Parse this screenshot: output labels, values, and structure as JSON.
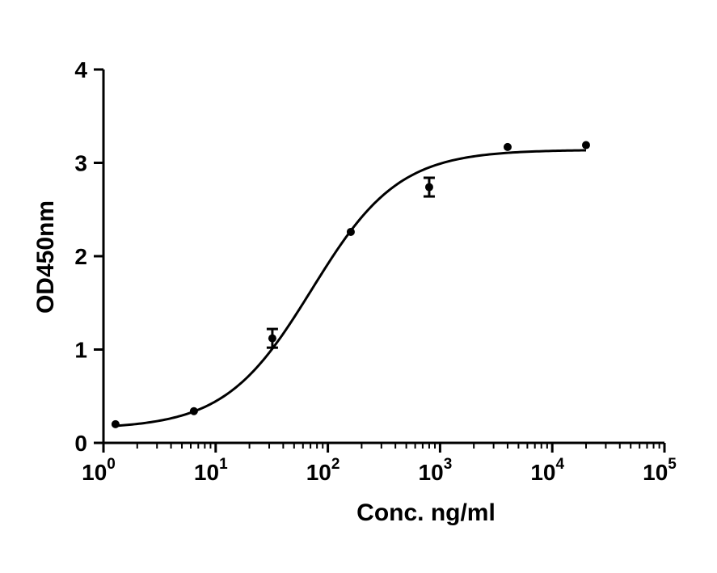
{
  "chart_data": {
    "type": "scatter",
    "title": "",
    "xlabel": "Conc. ng/ml",
    "ylabel": "OD450nm",
    "x_scale": "log10",
    "xlim": [
      1,
      100000
    ],
    "ylim": [
      0,
      4
    ],
    "x_ticks": [
      {
        "base": "10",
        "exp": "0",
        "value": 1
      },
      {
        "base": "10",
        "exp": "1",
        "value": 10
      },
      {
        "base": "10",
        "exp": "2",
        "value": 100
      },
      {
        "base": "10",
        "exp": "3",
        "value": 1000
      },
      {
        "base": "10",
        "exp": "4",
        "value": 10000
      },
      {
        "base": "10",
        "exp": "5",
        "value": 100000
      }
    ],
    "y_ticks": [
      {
        "label": "0",
        "value": 0
      },
      {
        "label": "1",
        "value": 1
      },
      {
        "label": "2",
        "value": 2
      },
      {
        "label": "3",
        "value": 3
      },
      {
        "label": "4",
        "value": 4
      }
    ],
    "grid": false,
    "legend": "none",
    "color": "#000000",
    "points": [
      {
        "x": 1.28,
        "y": 0.2,
        "err": 0
      },
      {
        "x": 6.4,
        "y": 0.34,
        "err": 0
      },
      {
        "x": 32,
        "y": 1.12,
        "err": 0.1
      },
      {
        "x": 160,
        "y": 2.26,
        "err": 0
      },
      {
        "x": 800,
        "y": 2.74,
        "err": 0.1
      },
      {
        "x": 4000,
        "y": 3.17,
        "err": 0
      },
      {
        "x": 20000,
        "y": 3.19,
        "err": 0
      }
    ],
    "fit": {
      "model": "four-parameter logistic",
      "bottom": 0.15,
      "top": 3.14,
      "ec50": 72,
      "hill": 1.12
    }
  }
}
